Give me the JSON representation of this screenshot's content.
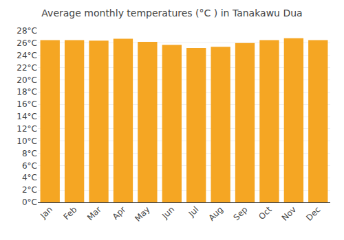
{
  "chart_data": {
    "type": "bar",
    "title": "Average monthly temperatures (°C ) in Tanakawu Dua",
    "categories": [
      "Jan",
      "Feb",
      "Mar",
      "Apr",
      "May",
      "Jun",
      "Jul",
      "Aug",
      "Sep",
      "Oct",
      "Nov",
      "Dec"
    ],
    "values": [
      26.5,
      26.5,
      26.4,
      26.7,
      26.2,
      25.7,
      25.2,
      25.4,
      26.0,
      26.5,
      26.8,
      26.5
    ],
    "color": "#F5A623",
    "ylim": [
      0,
      28
    ],
    "yticks": [
      {
        "value": 0,
        "label": "0°C"
      },
      {
        "value": 2,
        "label": "2°C"
      },
      {
        "value": 4,
        "label": "4°C"
      },
      {
        "value": 6,
        "label": "6°C"
      },
      {
        "value": 8,
        "label": "8°C"
      },
      {
        "value": 10,
        "label": "10°C"
      },
      {
        "value": 12,
        "label": "12°C"
      },
      {
        "value": 14,
        "label": "14°C"
      },
      {
        "value": 16,
        "label": "16°C"
      },
      {
        "value": 18,
        "label": "18°C"
      },
      {
        "value": 20,
        "label": "20°C"
      },
      {
        "value": 22,
        "label": "22°C"
      },
      {
        "value": 24,
        "label": "24°C"
      },
      {
        "value": 26,
        "label": "26°C"
      },
      {
        "value": 28,
        "label": "28°C"
      }
    ],
    "grid": true
  }
}
